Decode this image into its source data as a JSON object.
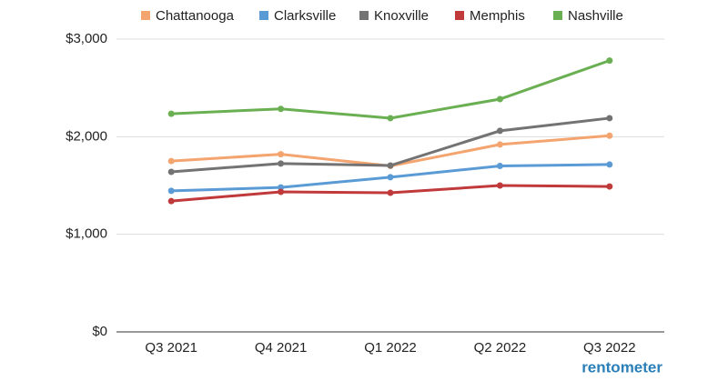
{
  "chart_data": {
    "type": "line",
    "categories": [
      "Q3 2021",
      "Q4 2021",
      "Q1 2022",
      "Q2 2022",
      "Q3 2022"
    ],
    "series": [
      {
        "name": "Chattanooga",
        "color": "#f4a46e",
        "values": [
          1750,
          1820,
          1700,
          1920,
          2010
        ]
      },
      {
        "name": "Clarksville",
        "color": "#5b9bd5",
        "values": [
          1445,
          1480,
          1585,
          1700,
          1715
        ]
      },
      {
        "name": "Knoxville",
        "color": "#737373",
        "values": [
          1640,
          1725,
          1705,
          2060,
          2190
        ]
      },
      {
        "name": "Memphis",
        "color": "#c0393b",
        "values": [
          1340,
          1435,
          1425,
          1500,
          1490
        ]
      },
      {
        "name": "Nashville",
        "color": "#6aaf52",
        "values": [
          2235,
          2285,
          2190,
          2385,
          2780
        ]
      }
    ],
    "ylim": [
      0,
      3000
    ],
    "yticks": [
      {
        "value": 0,
        "label": "$0"
      },
      {
        "value": 1000,
        "label": "$1,000"
      },
      {
        "value": 2000,
        "label": "$2,000"
      },
      {
        "value": 3000,
        "label": "$3,000"
      }
    ],
    "grid": true,
    "legend": "top",
    "watermark": "rentometer"
  }
}
